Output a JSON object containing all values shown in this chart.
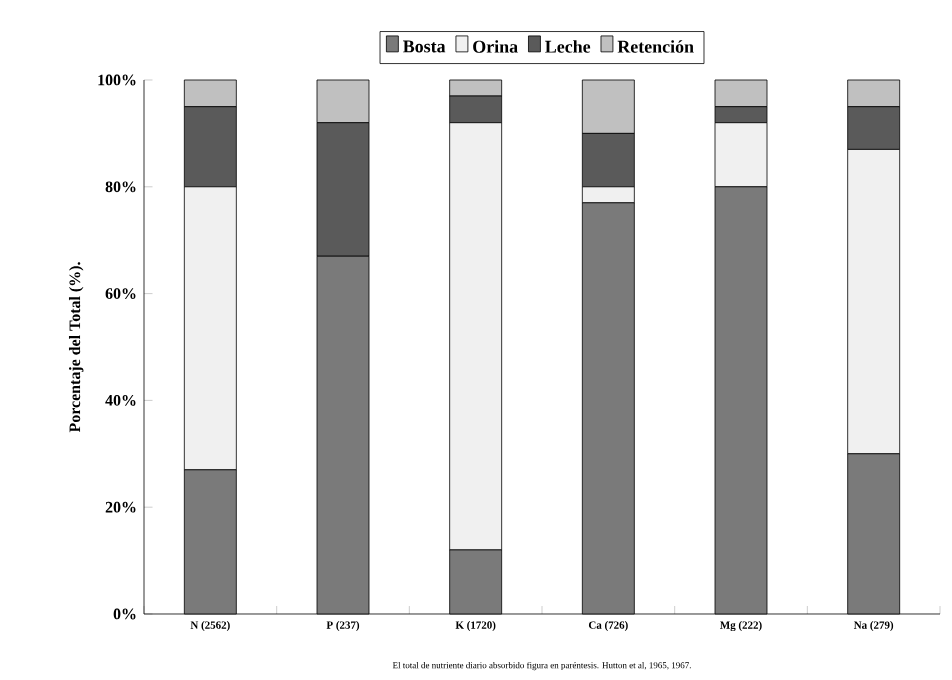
{
  "chart_data": {
    "type": "bar",
    "stacked": true,
    "ylabel": "Porcentaje del Total (%).",
    "categories": [
      "N (2562)",
      "P (237)",
      "K (1720)",
      "Ca (726)",
      "Mg (222)",
      "Na (279)"
    ],
    "series": [
      {
        "name": "Bosta",
        "color": "#7a7a7a",
        "values": [
          27,
          67,
          12,
          77,
          80,
          30
        ]
      },
      {
        "name": "Orina",
        "color": "#f0f0f0",
        "values": [
          53,
          0,
          80,
          3,
          12,
          57
        ]
      },
      {
        "name": "Leche",
        "color": "#5a5a5a",
        "values": [
          15,
          25,
          5,
          10,
          3,
          8
        ]
      },
      {
        "name": "Retención",
        "color": "#c0c0c0",
        "values": [
          5,
          8,
          3,
          10,
          5,
          5
        ]
      }
    ],
    "ylim": [
      0,
      100
    ],
    "yticks": [
      {
        "value": 0,
        "label": "0%"
      },
      {
        "value": 20,
        "label": "20%"
      },
      {
        "value": 40,
        "label": "40%"
      },
      {
        "value": 60,
        "label": "60%"
      },
      {
        "value": 80,
        "label": "80%"
      },
      {
        "value": 100,
        "label": "100%"
      }
    ],
    "grid": false,
    "legend": "top",
    "annotations": [
      "El total de nutriente diario absorbido figura en paréntesis. Hutton et al, 1965, 1967."
    ]
  }
}
